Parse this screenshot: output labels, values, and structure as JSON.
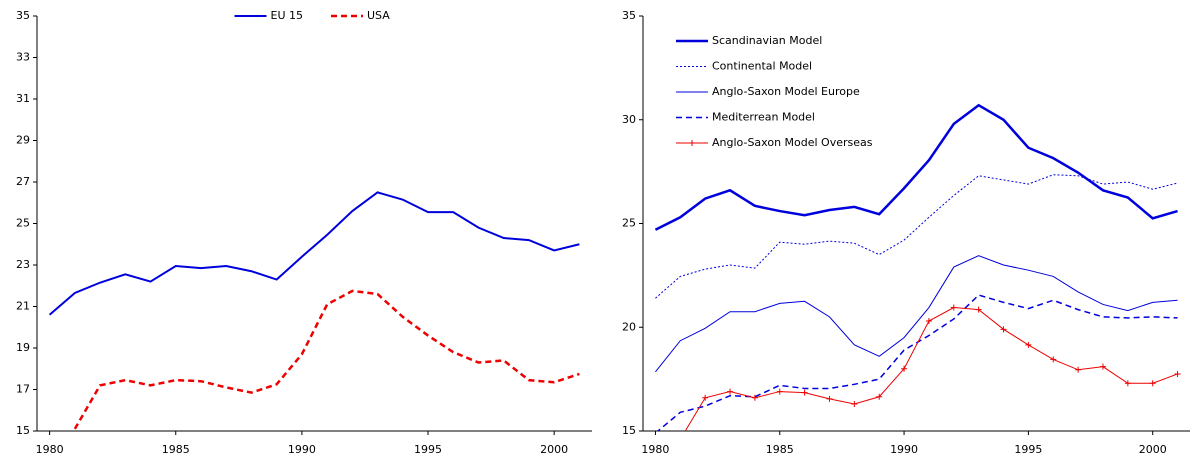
{
  "chart_data": [
    {
      "type": "line",
      "x": [
        1980,
        1981,
        1982,
        1983,
        1984,
        1985,
        1986,
        1987,
        1988,
        1989,
        1990,
        1991,
        1992,
        1993,
        1994,
        1995,
        1996,
        1997,
        1998,
        1999,
        2000,
        2001
      ],
      "xlim": [
        1979.5,
        2001.5
      ],
      "xticks": [
        1980,
        1985,
        1990,
        1995,
        2000
      ],
      "ylim": [
        15,
        35
      ],
      "yticks": [
        15,
        17,
        19,
        21,
        23,
        25,
        27,
        29,
        31,
        33,
        35
      ],
      "legend": "upper center",
      "series": [
        {
          "name": "EU 15",
          "color": "#0000dd",
          "width": 2,
          "dash": "solid",
          "values": [
            20.6,
            21.65,
            22.15,
            22.55,
            22.2,
            22.95,
            22.85,
            22.95,
            22.7,
            22.3,
            23.4,
            24.45,
            25.6,
            26.5,
            26.15,
            25.55,
            25.55,
            24.8,
            24.3,
            24.2,
            23.7,
            24.0
          ]
        },
        {
          "name": "USA",
          "color": "#ee0000",
          "width": 2.5,
          "dash": "dashed",
          "values": [
            null,
            15.1,
            17.2,
            17.45,
            17.2,
            17.45,
            17.4,
            17.1,
            16.85,
            17.25,
            18.7,
            21.1,
            21.75,
            21.6,
            20.5,
            19.6,
            18.8,
            18.3,
            18.4,
            17.45,
            17.35,
            17.75
          ]
        }
      ]
    },
    {
      "type": "line",
      "x": [
        1980,
        1981,
        1982,
        1983,
        1984,
        1985,
        1986,
        1987,
        1988,
        1989,
        1990,
        1991,
        1992,
        1993,
        1994,
        1995,
        1996,
        1997,
        1998,
        1999,
        2000,
        2001
      ],
      "xlim": [
        1979.5,
        2001.5
      ],
      "xticks": [
        1980,
        1985,
        1990,
        1995,
        2000
      ],
      "ylim": [
        15,
        35
      ],
      "yticks": [
        15,
        20,
        25,
        30,
        35
      ],
      "legend": "upper left",
      "series": [
        {
          "name": "Scandinavian Model",
          "color": "#0000dd",
          "width": 2.5,
          "dash": "solid",
          "values": [
            24.7,
            25.3,
            26.2,
            26.6,
            25.85,
            25.6,
            25.4,
            25.65,
            25.8,
            25.45,
            26.7,
            28.05,
            29.8,
            30.7,
            30.0,
            28.65,
            28.15,
            27.45,
            26.6,
            26.25,
            25.25,
            25.6
          ]
        },
        {
          "name": "Continental Model",
          "color": "#0000dd",
          "width": 1,
          "dash": "dotted",
          "values": [
            21.4,
            22.45,
            22.8,
            23.0,
            22.85,
            24.1,
            24.0,
            24.15,
            24.05,
            23.5,
            24.2,
            25.3,
            26.35,
            27.3,
            27.1,
            26.9,
            27.35,
            27.3,
            26.9,
            27.0,
            26.65,
            26.95
          ]
        },
        {
          "name": "Anglo-Saxon Model Europe",
          "color": "#0000dd",
          "width": 1,
          "dash": "solid",
          "values": [
            17.85,
            19.35,
            19.95,
            20.75,
            20.75,
            21.15,
            21.25,
            20.5,
            19.15,
            18.6,
            19.5,
            20.95,
            22.9,
            23.45,
            23.0,
            22.75,
            22.45,
            21.7,
            21.1,
            20.8,
            21.2,
            21.3
          ]
        },
        {
          "name": "Mediterrean Model",
          "color": "#0000dd",
          "width": 1.5,
          "dash": "dashed",
          "values": [
            14.9,
            15.9,
            16.2,
            16.7,
            16.65,
            17.2,
            17.05,
            17.05,
            17.25,
            17.5,
            18.9,
            19.6,
            20.4,
            21.55,
            21.2,
            20.9,
            21.3,
            20.85,
            20.5,
            20.45,
            20.5,
            20.45
          ]
        },
        {
          "name": "Anglo-Saxon Model Overseas",
          "color": "#ee0000",
          "width": 1,
          "dash": "solid",
          "marker": "plus",
          "values": [
            null,
            14.6,
            16.6,
            16.9,
            16.6,
            16.9,
            16.85,
            16.55,
            16.3,
            16.65,
            18.0,
            20.3,
            20.95,
            20.85,
            19.9,
            19.15,
            18.45,
            17.95,
            18.1,
            17.3,
            17.3,
            17.75
          ]
        }
      ]
    }
  ]
}
